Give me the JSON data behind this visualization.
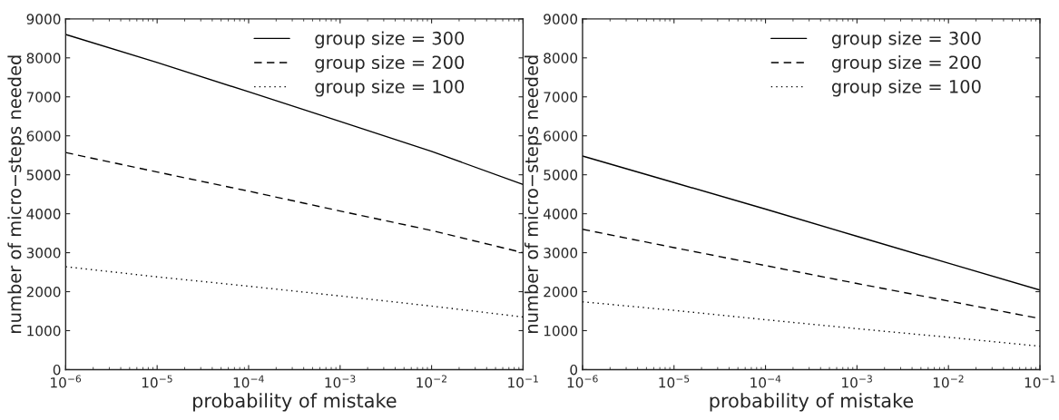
{
  "chart_data": [
    {
      "type": "line",
      "xlabel": "probability of mistake",
      "ylabel": "number of micro−steps needed",
      "log": "x",
      "x": [
        1e-06,
        1e-05,
        0.0001,
        0.001,
        0.01,
        0.1
      ],
      "xlim": [
        1e-06,
        0.1
      ],
      "xticks": [
        {
          "value": 1e-06,
          "label": "10$^{−6}$"
        },
        {
          "value": 1e-05,
          "label": "10$^{−5}$"
        },
        {
          "value": 0.0001,
          "label": "10$^{−4}$"
        },
        {
          "value": 0.001,
          "label": "10$^{−3}$"
        },
        {
          "value": 0.01,
          "label": "10$^{−2}$"
        },
        {
          "value": 0.1,
          "label": "10$^{−1}$"
        }
      ],
      "ylim": [
        0,
        9000
      ],
      "yticks": [
        0,
        1000,
        2000,
        3000,
        4000,
        5000,
        6000,
        7000,
        8000,
        9000
      ],
      "legend": "top right",
      "grid": false,
      "series": [
        {
          "name": "group size = 300",
          "color": "#000000",
          "line_style": "solid",
          "values": [
            8600,
            7880,
            7130,
            6370,
            5600,
            4750
          ]
        },
        {
          "name": "group size = 200",
          "color": "#000000",
          "line_style": "dashed",
          "values": [
            5570,
            5070,
            4580,
            4070,
            3570,
            3000
          ]
        },
        {
          "name": "group size = 100",
          "color": "#000000",
          "line_style": "dotted",
          "values": [
            2640,
            2380,
            2140,
            1890,
            1630,
            1350
          ]
        }
      ]
    },
    {
      "type": "line",
      "xlabel": "probability of mistake",
      "ylabel": "number of micro−steps needed",
      "log": "x",
      "x": [
        1e-06,
        1e-05,
        0.0001,
        0.001,
        0.01,
        0.1
      ],
      "xlim": [
        1e-06,
        0.1
      ],
      "xticks": [
        {
          "value": 1e-06,
          "label": "10$^{−6}$"
        },
        {
          "value": 1e-05,
          "label": "10$^{−5}$"
        },
        {
          "value": 0.0001,
          "label": "10$^{−4}$"
        },
        {
          "value": 0.001,
          "label": "10$^{−3}$"
        },
        {
          "value": 0.01,
          "label": "10$^{−2}$"
        },
        {
          "value": 0.1,
          "label": "10$^{−1}$"
        }
      ],
      "ylim": [
        0,
        9000
      ],
      "yticks": [
        0,
        1000,
        2000,
        3000,
        4000,
        5000,
        6000,
        7000,
        8000,
        9000
      ],
      "legend": "top right",
      "grid": false,
      "series": [
        {
          "name": "group size = 300",
          "color": "#000000",
          "line_style": "solid",
          "values": [
            5480,
            4800,
            4120,
            3420,
            2730,
            2040
          ]
        },
        {
          "name": "group size = 200",
          "color": "#000000",
          "line_style": "dashed",
          "values": [
            3600,
            3130,
            2670,
            2210,
            1760,
            1310
          ]
        },
        {
          "name": "group size = 100",
          "color": "#000000",
          "line_style": "dotted",
          "values": [
            1740,
            1520,
            1280,
            1050,
            830,
            600
          ]
        }
      ]
    }
  ]
}
